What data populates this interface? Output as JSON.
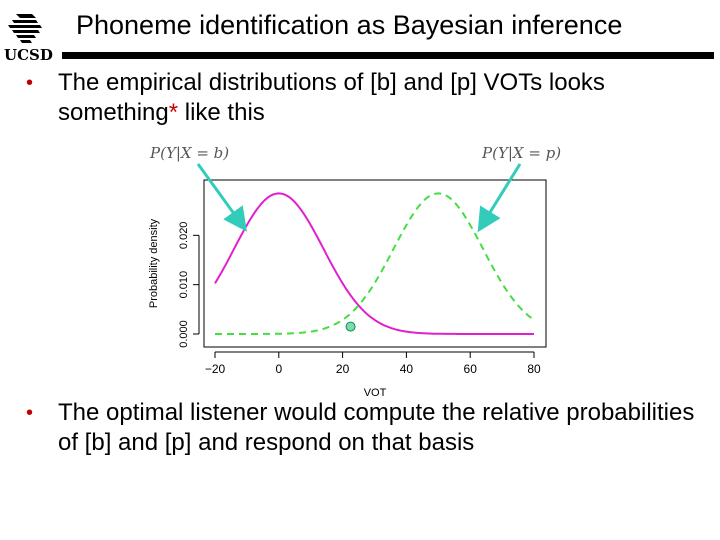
{
  "slide": {
    "title": "Phoneme identification as Bayesian inference",
    "logo_text": "UCSD",
    "bullet_marker": "•",
    "bullet1_a": "The empirical distributions of [b] and [p] VOTs looks something",
    "bullet1_star": "*",
    "bullet1_b": " like this",
    "bullet2": "The optimal listener would compute the relative probabilities of [b] and [p] and respond on that basis"
  },
  "colors": {
    "b_curve": "#e020d0",
    "p_curve": "#44dd44",
    "arrow": "#33ccbb",
    "point_fill": "#77ddaa",
    "rule": "#000000"
  },
  "chart_data": {
    "type": "line",
    "xlabel": "VOT",
    "ylabel": "Probability density",
    "xlim": [
      -20,
      80
    ],
    "ylim": [
      0.0,
      0.03
    ],
    "x_ticks": [
      -20,
      0,
      20,
      40,
      60,
      80
    ],
    "x_tick_labels": [
      "−20",
      "0",
      "20",
      "40",
      "60",
      "80"
    ],
    "y_ticks": [
      0.0,
      0.01,
      0.02
    ],
    "y_tick_labels": [
      "0.000",
      "0.010",
      "0.020"
    ],
    "series": [
      {
        "name": "P(Y|X = b)",
        "style": "solid",
        "mean": 0,
        "sd": 14,
        "peak": 0.0285
      },
      {
        "name": "P(Y|X = p)",
        "style": "dashed",
        "mean": 50,
        "sd": 14,
        "peak": 0.0285
      }
    ],
    "marker_point": {
      "x": 22.5,
      "y": 0.0015
    },
    "grid": false
  }
}
